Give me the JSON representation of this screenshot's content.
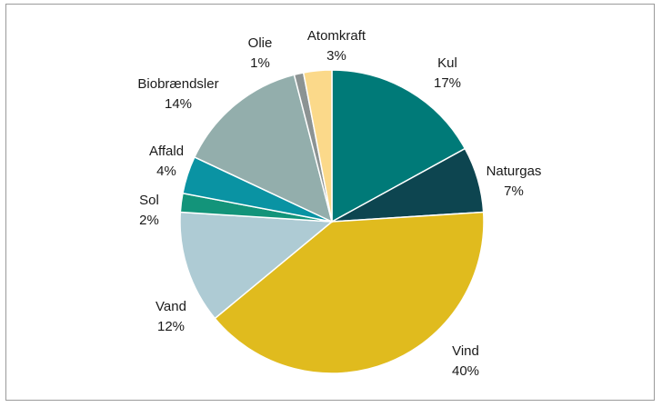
{
  "chart_data": {
    "type": "pie",
    "title": "",
    "slices": [
      {
        "label": "Kul",
        "pct_text": "17%",
        "value": 17,
        "color": "#007a78"
      },
      {
        "label": "Naturgas",
        "pct_text": "7%",
        "value": 7,
        "color": "#0d4550"
      },
      {
        "label": "Vind",
        "pct_text": "40%",
        "value": 40,
        "color": "#e0bb1e"
      },
      {
        "label": "Vand",
        "pct_text": "12%",
        "value": 12,
        "color": "#aecbd4"
      },
      {
        "label": "Sol",
        "pct_text": "2%",
        "value": 2,
        "color": "#13947a"
      },
      {
        "label": "Affald",
        "pct_text": "4%",
        "value": 4,
        "color": "#0a93a3"
      },
      {
        "label": "Biobrændsler",
        "pct_text": "14%",
        "value": 14,
        "color": "#93aeac"
      },
      {
        "label": "Olie",
        "pct_text": "1%",
        "value": 1,
        "color": "#8c9393"
      },
      {
        "label": "Atomkraft",
        "pct_text": "3%",
        "value": 3,
        "color": "#fbd98a"
      }
    ],
    "start_angle_deg": 0,
    "direction": "clockwise",
    "legend": "none",
    "data_labels": "outside"
  }
}
